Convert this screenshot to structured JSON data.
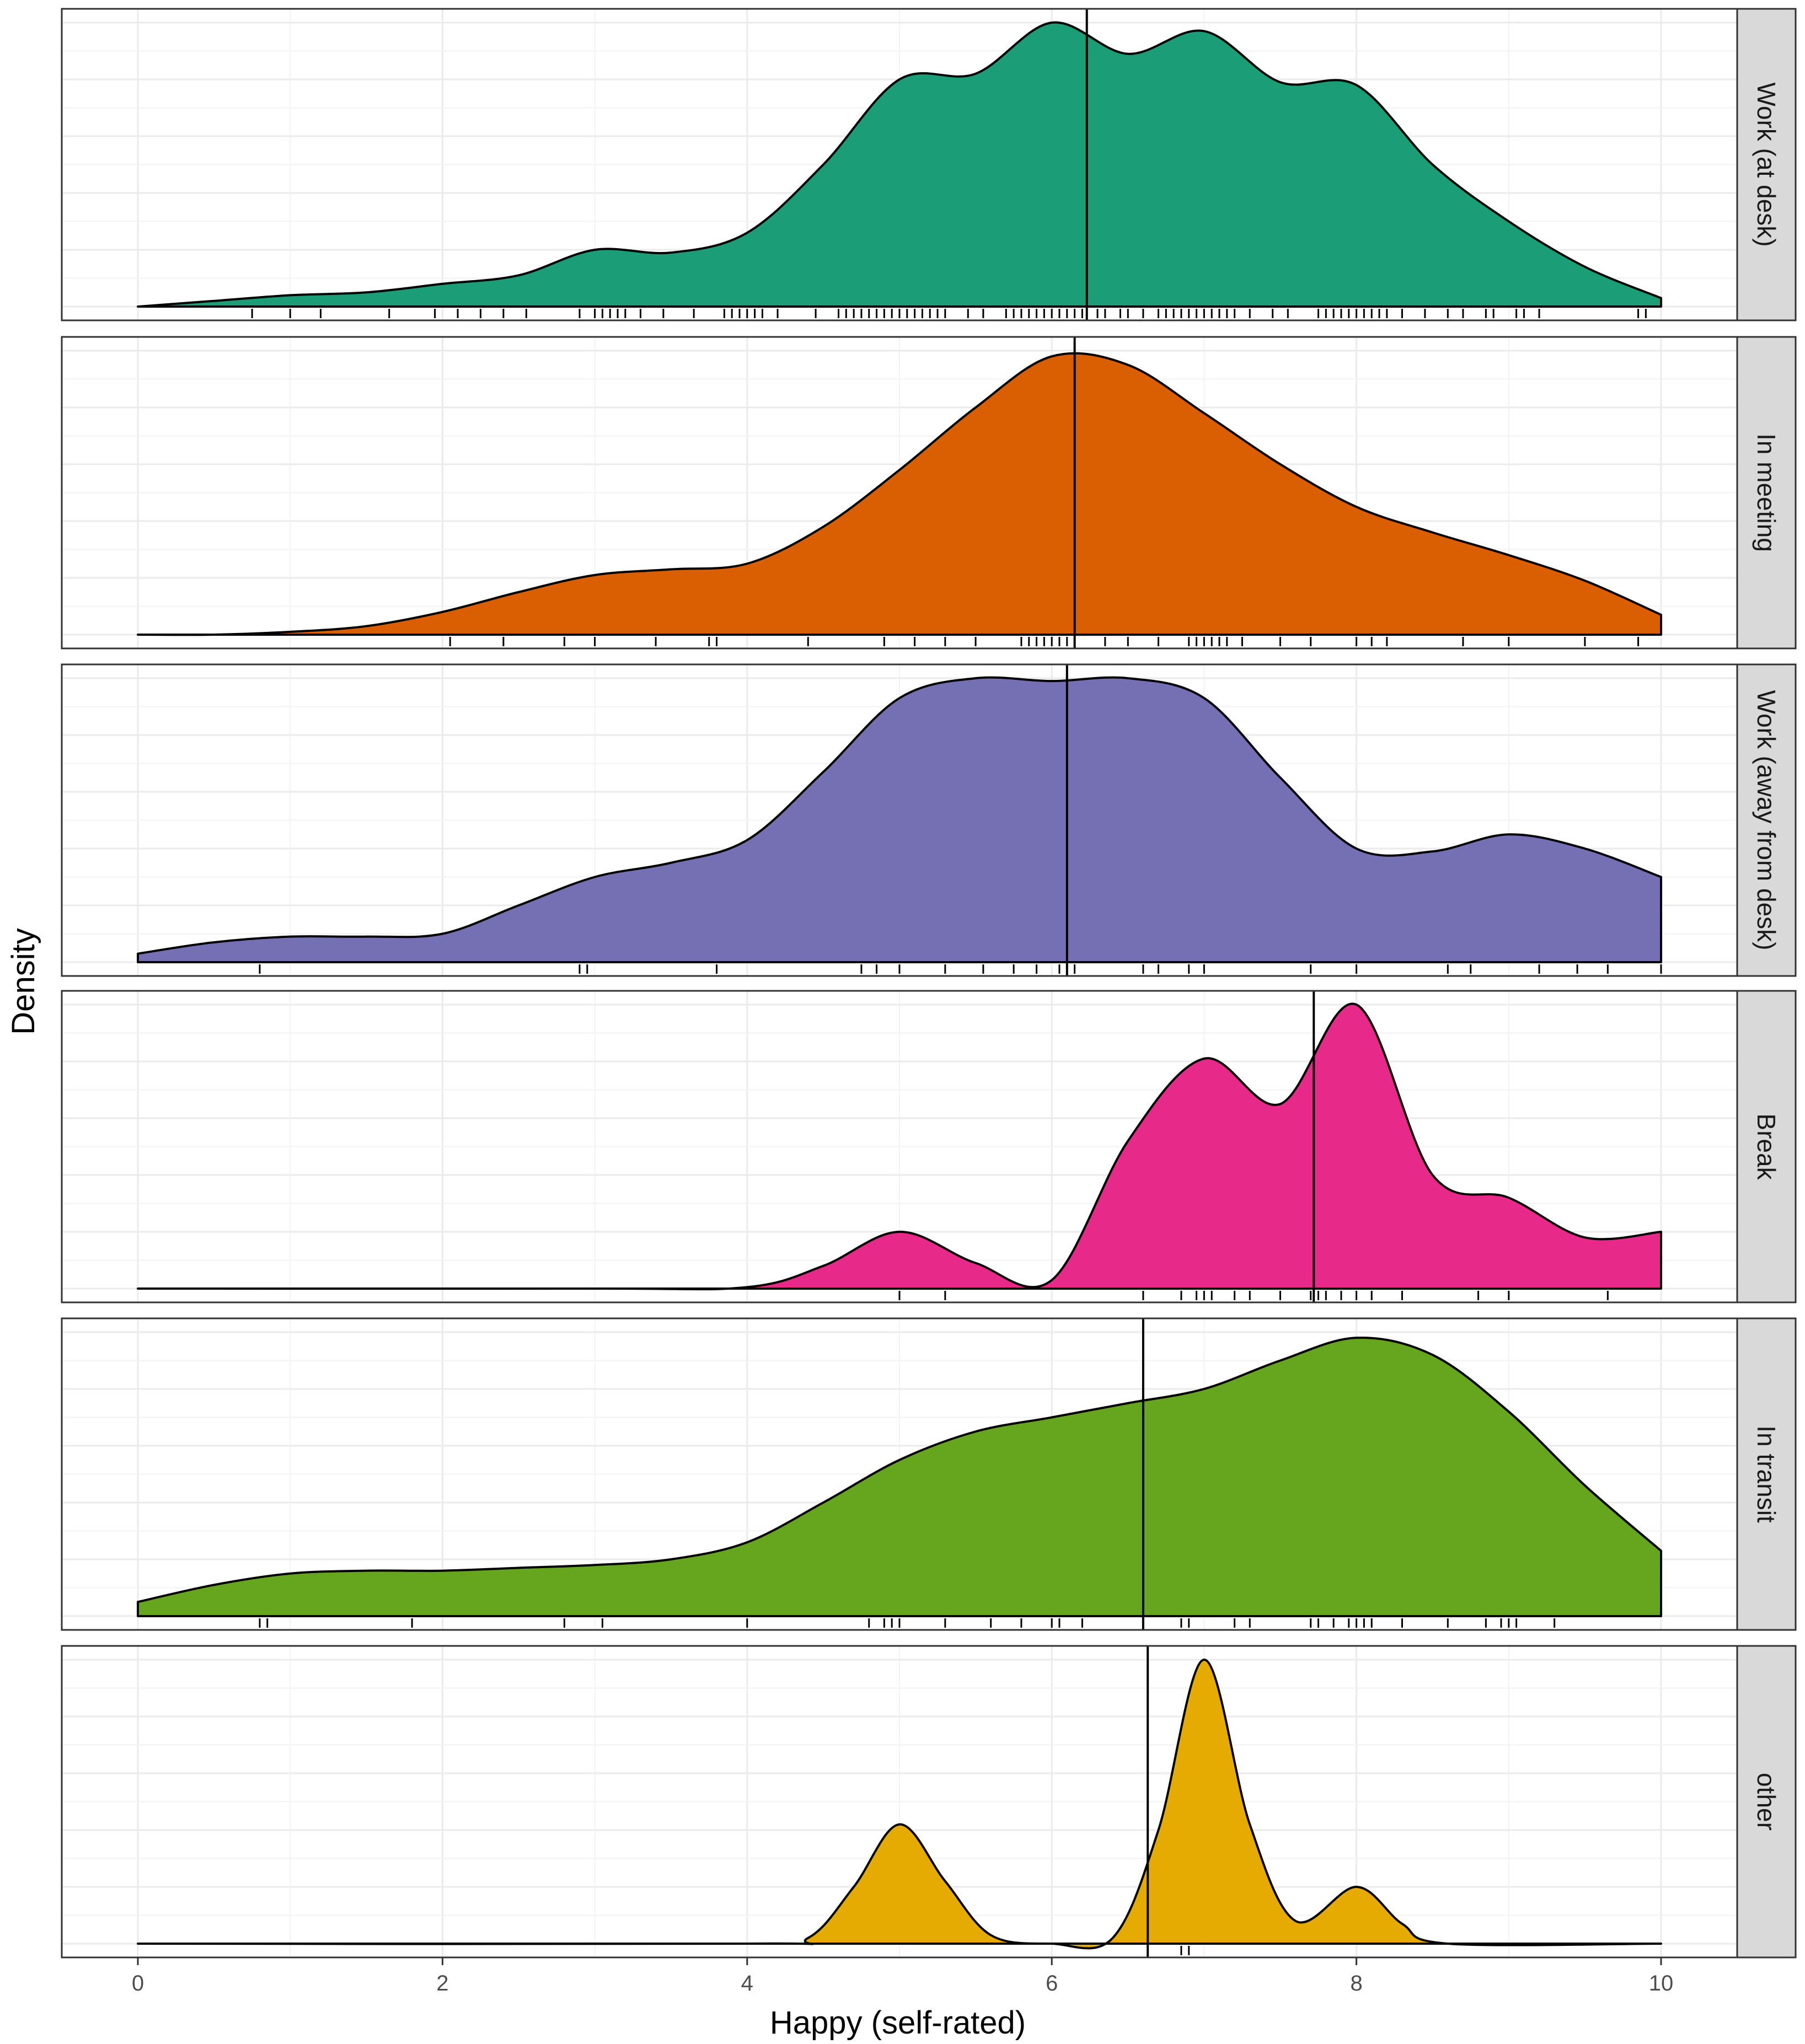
{
  "chart_data": {
    "type": "area",
    "subtype": "faceted density plot with rug and mean line",
    "xlabel": "Happy (self-rated)",
    "ylabel": "Density",
    "xlim": [
      0,
      10
    ],
    "x_ticks": [
      0,
      2,
      4,
      6,
      8,
      10
    ],
    "x_tick_labels": [
      "0",
      "2",
      "4",
      "6",
      "8",
      "10"
    ],
    "grid": true,
    "facets": [
      {
        "name": "Work (at desk)",
        "color": "#1b9e77",
        "mean": 6.23,
        "curve": [
          [
            0,
            0.0
          ],
          [
            0.5,
            0.02
          ],
          [
            1,
            0.04
          ],
          [
            1.5,
            0.05
          ],
          [
            2,
            0.08
          ],
          [
            2.5,
            0.11
          ],
          [
            3,
            0.2
          ],
          [
            3.5,
            0.19
          ],
          [
            4,
            0.26
          ],
          [
            4.5,
            0.5
          ],
          [
            5,
            0.8
          ],
          [
            5.5,
            0.82
          ],
          [
            6,
            1.0
          ],
          [
            6.5,
            0.89
          ],
          [
            7,
            0.97
          ],
          [
            7.5,
            0.79
          ],
          [
            8,
            0.78
          ],
          [
            8.5,
            0.5
          ],
          [
            9,
            0.3
          ],
          [
            9.5,
            0.14
          ],
          [
            10,
            0.03
          ]
        ],
        "rug": [
          0.75,
          1.0,
          1.2,
          1.65,
          1.95,
          2.1,
          2.25,
          2.4,
          2.55,
          2.9,
          3.0,
          3.05,
          3.1,
          3.15,
          3.2,
          3.3,
          3.45,
          3.65,
          3.85,
          3.9,
          3.95,
          4.0,
          4.05,
          4.1,
          4.2,
          4.45,
          4.6,
          4.65,
          4.7,
          4.75,
          4.8,
          4.85,
          4.9,
          4.95,
          5.0,
          5.05,
          5.1,
          5.15,
          5.2,
          5.25,
          5.3,
          5.45,
          5.55,
          5.7,
          5.75,
          5.8,
          5.85,
          5.9,
          5.95,
          6.0,
          6.05,
          6.1,
          6.15,
          6.2,
          6.3,
          6.35,
          6.45,
          6.5,
          6.6,
          6.7,
          6.75,
          6.8,
          6.85,
          6.9,
          6.95,
          7.0,
          7.05,
          7.1,
          7.15,
          7.2,
          7.3,
          7.45,
          7.55,
          7.75,
          7.8,
          7.85,
          7.9,
          7.95,
          8.0,
          8.05,
          8.1,
          8.15,
          8.2,
          8.3,
          8.45,
          8.6,
          8.7,
          8.85,
          8.9,
          9.05,
          9.1,
          9.2,
          9.85,
          9.9
        ]
      },
      {
        "name": "In meeting",
        "color": "#d95f02",
        "mean": 6.15,
        "curve": [
          [
            0,
            0.0
          ],
          [
            0.5,
            0.0
          ],
          [
            1,
            0.01
          ],
          [
            1.5,
            0.03
          ],
          [
            2,
            0.08
          ],
          [
            2.5,
            0.15
          ],
          [
            3,
            0.21
          ],
          [
            3.5,
            0.23
          ],
          [
            4,
            0.25
          ],
          [
            4.5,
            0.38
          ],
          [
            5,
            0.58
          ],
          [
            5.5,
            0.8
          ],
          [
            6,
            0.98
          ],
          [
            6.5,
            0.95
          ],
          [
            7,
            0.78
          ],
          [
            7.5,
            0.6
          ],
          [
            8,
            0.45
          ],
          [
            8.5,
            0.36
          ],
          [
            9,
            0.28
          ],
          [
            9.5,
            0.19
          ],
          [
            10,
            0.07
          ]
        ],
        "rug": [
          2.05,
          2.4,
          2.8,
          3.0,
          3.4,
          3.75,
          3.8,
          4.4,
          4.9,
          5.1,
          5.3,
          5.5,
          5.8,
          5.85,
          5.9,
          5.95,
          6.0,
          6.05,
          6.1,
          6.15,
          6.35,
          6.5,
          6.7,
          6.9,
          6.95,
          7.0,
          7.05,
          7.1,
          7.15,
          7.25,
          7.5,
          7.7,
          8.0,
          8.1,
          8.2,
          8.7,
          9.0,
          9.5,
          9.85
        ]
      },
      {
        "name": "Work (away from desk)",
        "color": "#7570b3",
        "mean": 6.1,
        "curve": [
          [
            0,
            0.03
          ],
          [
            0.5,
            0.07
          ],
          [
            1,
            0.09
          ],
          [
            1.5,
            0.09
          ],
          [
            2,
            0.1
          ],
          [
            2.5,
            0.2
          ],
          [
            3,
            0.3
          ],
          [
            3.5,
            0.35
          ],
          [
            4,
            0.43
          ],
          [
            4.5,
            0.67
          ],
          [
            5,
            0.93
          ],
          [
            5.5,
            1.0
          ],
          [
            6,
            0.99
          ],
          [
            6.5,
            1.0
          ],
          [
            7,
            0.93
          ],
          [
            7.5,
            0.65
          ],
          [
            8,
            0.4
          ],
          [
            8.5,
            0.39
          ],
          [
            9,
            0.45
          ],
          [
            9.5,
            0.4
          ],
          [
            10,
            0.3
          ]
        ],
        "rug": [
          0.8,
          2.9,
          2.95,
          3.8,
          4.75,
          4.85,
          5.0,
          5.3,
          5.55,
          5.75,
          5.9,
          6.05,
          6.1,
          6.15,
          6.6,
          6.7,
          6.9,
          7.0,
          7.7,
          8.0,
          8.6,
          8.75,
          9.2,
          9.45,
          9.65,
          10.0
        ]
      },
      {
        "name": "Break",
        "color": "#e7298a",
        "mean": 7.72,
        "curve": [
          [
            0,
            0.0
          ],
          [
            3,
            0.0
          ],
          [
            4,
            0.005
          ],
          [
            4.5,
            0.08
          ],
          [
            5,
            0.2
          ],
          [
            5.5,
            0.09
          ],
          [
            6,
            0.03
          ],
          [
            6.5,
            0.52
          ],
          [
            7,
            0.81
          ],
          [
            7.5,
            0.65
          ],
          [
            8,
            1.0
          ],
          [
            8.5,
            0.4
          ],
          [
            9,
            0.32
          ],
          [
            9.5,
            0.18
          ],
          [
            10,
            0.2
          ]
        ],
        "rug": [
          5.0,
          5.3,
          6.6,
          6.85,
          6.95,
          7.0,
          7.05,
          7.2,
          7.3,
          7.5,
          7.7,
          7.75,
          7.8,
          7.9,
          8.0,
          8.1,
          8.3,
          8.8,
          9.0,
          9.65
        ]
      },
      {
        "name": "In transit",
        "color": "#66a61e",
        "mean": 6.6,
        "curve": [
          [
            0,
            0.05
          ],
          [
            0.5,
            0.11
          ],
          [
            1,
            0.15
          ],
          [
            1.5,
            0.16
          ],
          [
            2,
            0.16
          ],
          [
            2.5,
            0.17
          ],
          [
            3,
            0.18
          ],
          [
            3.5,
            0.2
          ],
          [
            4,
            0.26
          ],
          [
            4.5,
            0.4
          ],
          [
            5,
            0.55
          ],
          [
            5.5,
            0.65
          ],
          [
            6,
            0.7
          ],
          [
            6.5,
            0.75
          ],
          [
            7,
            0.8
          ],
          [
            7.5,
            0.9
          ],
          [
            8,
            0.98
          ],
          [
            8.5,
            0.92
          ],
          [
            9,
            0.72
          ],
          [
            9.5,
            0.46
          ],
          [
            10,
            0.23
          ]
        ],
        "rug": [
          0.8,
          0.85,
          1.8,
          2.8,
          3.05,
          4.0,
          4.8,
          4.9,
          4.95,
          5.0,
          5.3,
          5.6,
          5.8,
          6.0,
          6.05,
          6.2,
          6.6,
          6.85,
          6.9,
          7.2,
          7.3,
          7.7,
          7.75,
          7.85,
          7.95,
          8.0,
          8.05,
          8.1,
          8.3,
          8.6,
          8.85,
          8.95,
          9.0,
          9.05,
          9.3
        ]
      },
      {
        "name": "other",
        "color": "#e6ab02",
        "mean": 6.63,
        "curve": [
          [
            0,
            0.0
          ],
          [
            4,
            0.0
          ],
          [
            4.4,
            0.02
          ],
          [
            4.7,
            0.2
          ],
          [
            5,
            0.42
          ],
          [
            5.3,
            0.22
          ],
          [
            5.6,
            0.03
          ],
          [
            6,
            0.0
          ],
          [
            6.4,
            0.02
          ],
          [
            6.7,
            0.4
          ],
          [
            7,
            1.0
          ],
          [
            7.3,
            0.42
          ],
          [
            7.6,
            0.08
          ],
          [
            8,
            0.2
          ],
          [
            8.3,
            0.07
          ],
          [
            8.6,
            0.0
          ],
          [
            10,
            0.0
          ]
        ],
        "rug": [
          6.85,
          6.9
        ]
      }
    ]
  }
}
